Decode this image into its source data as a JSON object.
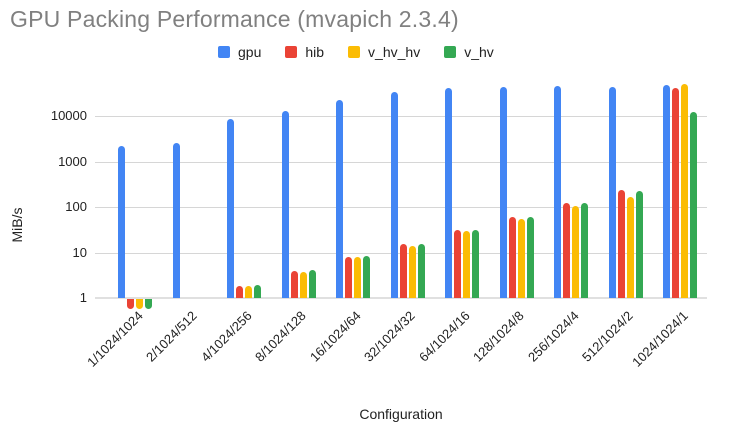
{
  "chart_data": {
    "type": "bar",
    "title": "GPU Packing Performance (mvapich 2.3.4)",
    "xlabel": "Configuration",
    "ylabel": "MiB/s",
    "y_scale": "log",
    "y_ticks": [
      1,
      10,
      100,
      1000,
      10000
    ],
    "ylim": [
      1,
      74000
    ],
    "grid": true,
    "legend_position": "top",
    "categories": [
      "1/1024/1024",
      "2/1024/512",
      "4/1024/256",
      "8/1024/128",
      "16/1024/64",
      "32/1024/32",
      "64/1024/16",
      "128/1024/8",
      "256/1024/4",
      "512/1024/2",
      "1024/1024/1"
    ],
    "series": [
      {
        "name": "gpu",
        "color": "#4285F4",
        "values": [
          2200,
          2600,
          8500,
          13000,
          23000,
          34000,
          42000,
          44000,
          46000,
          44000,
          49000
        ]
      },
      {
        "name": "hib",
        "color": "#EA4335",
        "values": [
          0.6,
          null,
          1.8,
          4.0,
          8.0,
          15.0,
          31,
          60,
          120,
          240,
          41000
        ]
      },
      {
        "name": "v_hv_hv",
        "color": "#FBBC04",
        "values": [
          0.6,
          null,
          1.8,
          3.8,
          7.8,
          14.0,
          30,
          55,
          105,
          165,
          50000
        ]
      },
      {
        "name": "v_hv",
        "color": "#34A853",
        "values": [
          0.6,
          null,
          1.9,
          4.1,
          8.3,
          15.5,
          32,
          61,
          125,
          230,
          12500
        ]
      }
    ]
  },
  "colors": {
    "title_text": "#808080",
    "axis_text": "#222222",
    "gridline": "#d6d6d6",
    "baseline": "#e0e0e0",
    "background": "#ffffff"
  }
}
